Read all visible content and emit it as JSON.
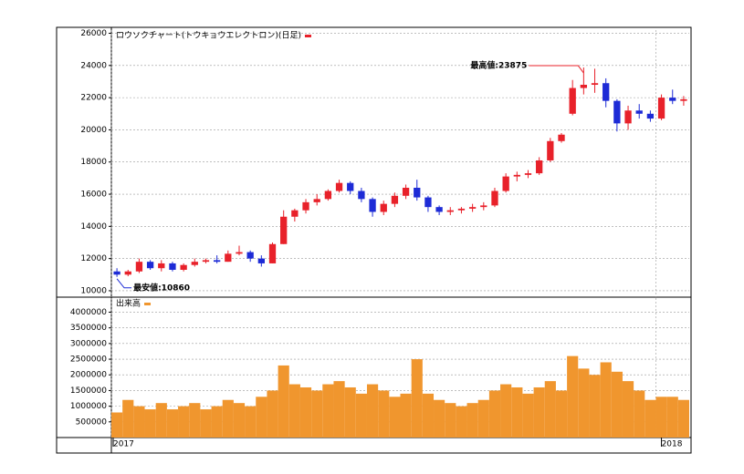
{
  "chart_data": [
    {
      "type": "candlestick",
      "legend_label": "ロウソクチャート(トウキョウエレクトロン)(日足)",
      "legend_color": "#e8212a",
      "categories": [
        "2017",
        null,
        null,
        null,
        null,
        null,
        null,
        null,
        null,
        null,
        null,
        null,
        null,
        null,
        null,
        null,
        null,
        null,
        null,
        null,
        null,
        null,
        null,
        null,
        null,
        null,
        null,
        null,
        null,
        null,
        null,
        null,
        null,
        null,
        null,
        null,
        null,
        null,
        null,
        null,
        null,
        null,
        null,
        null,
        null,
        null,
        null,
        null,
        null,
        "2018",
        null,
        null
      ],
      "open": [
        11200,
        11000,
        11200,
        11800,
        11400,
        11700,
        11300,
        11600,
        11800,
        11900,
        11800,
        12300,
        12400,
        12000,
        11700,
        12900,
        14600,
        15000,
        15500,
        15700,
        16200,
        16700,
        16200,
        15700,
        14900,
        15400,
        15900,
        16400,
        15800,
        15200,
        14900,
        15000,
        15100,
        15200,
        15300,
        16200,
        17100,
        17200,
        17300,
        18100,
        19300,
        21000,
        22600,
        22800,
        22900,
        21800,
        20400,
        21200,
        21000,
        20700,
        22000,
        21800
      ],
      "high": [
        11400,
        11300,
        12000,
        11900,
        11900,
        11800,
        11700,
        12000,
        12000,
        12200,
        12500,
        12800,
        12500,
        12200,
        13000,
        15000,
        15100,
        15700,
        16000,
        16300,
        16900,
        16800,
        16400,
        15800,
        15600,
        16100,
        16600,
        16900,
        15900,
        15300,
        15200,
        15200,
        15400,
        15500,
        16400,
        17300,
        17400,
        17500,
        18300,
        19500,
        19800,
        23100,
        23875,
        23800,
        23200,
        21900,
        21500,
        21600,
        21200,
        22200,
        22500,
        22100
      ],
      "low": [
        10860,
        10900,
        11100,
        11300,
        11200,
        11200,
        11200,
        11500,
        11700,
        11700,
        11800,
        12200,
        11800,
        11500,
        11700,
        12900,
        14300,
        14800,
        15300,
        15600,
        16100,
        16000,
        15500,
        14600,
        14700,
        15200,
        15700,
        15600,
        14900,
        14700,
        14700,
        14800,
        14900,
        15000,
        15200,
        16100,
        16800,
        17000,
        17200,
        18000,
        19200,
        20900,
        22200,
        22300,
        21400,
        19900,
        20000,
        20700,
        20500,
        20600,
        21600,
        21500
      ],
      "close": [
        11000,
        11200,
        11800,
        11400,
        11700,
        11300,
        11600,
        11800,
        11900,
        11800,
        12300,
        12400,
        12000,
        11700,
        12900,
        14600,
        15000,
        15500,
        15700,
        16200,
        16700,
        16200,
        15700,
        14900,
        15400,
        15900,
        16400,
        15800,
        15200,
        14900,
        15000,
        15100,
        15200,
        15300,
        16200,
        17100,
        17200,
        17300,
        18100,
        19300,
        19700,
        22600,
        22800,
        22900,
        21800,
        20400,
        21200,
        21000,
        20700,
        22000,
        21800,
        21900
      ],
      "up_color": "#e8212a",
      "down_color": "#1d2bd6",
      "ylim": [
        9600,
        26200
      ],
      "yticks": [
        10000,
        12000,
        14000,
        16000,
        18000,
        20000,
        22000,
        24000,
        26000
      ],
      "grid": true,
      "annotations": [
        {
          "text": "最高値:23875",
          "color": "#e8212a"
        },
        {
          "text": "最安値:10860",
          "color": "#1d2bd6"
        }
      ]
    },
    {
      "type": "bar",
      "legend_label": "出来高",
      "color": "#f0962e",
      "categories": [
        "2017",
        null,
        null,
        null,
        null,
        null,
        null,
        null,
        null,
        null,
        null,
        null,
        null,
        null,
        null,
        null,
        null,
        null,
        null,
        null,
        null,
        null,
        null,
        null,
        null,
        null,
        null,
        null,
        null,
        null,
        null,
        null,
        null,
        null,
        null,
        null,
        null,
        null,
        null,
        null,
        null,
        null,
        null,
        null,
        null,
        null,
        null,
        null,
        null,
        "2018",
        null,
        null
      ],
      "values": [
        800000,
        1200000,
        1000000,
        900000,
        1100000,
        900000,
        1000000,
        1100000,
        900000,
        1000000,
        1200000,
        1100000,
        1000000,
        1300000,
        1500000,
        2300000,
        1700000,
        1600000,
        1500000,
        1700000,
        1800000,
        1600000,
        1400000,
        1700000,
        1500000,
        1300000,
        1400000,
        2500000,
        1400000,
        1200000,
        1100000,
        1000000,
        1100000,
        1200000,
        1500000,
        1700000,
        1600000,
        1400000,
        1600000,
        1800000,
        1500000,
        2600000,
        2200000,
        2000000,
        2400000,
        2100000,
        1800000,
        1500000,
        1200000,
        1300000,
        1300000,
        1200000
      ],
      "ylim": [
        0,
        4450000
      ],
      "yticks": [
        500000,
        1000000,
        1500000,
        2000000,
        2500000,
        3000000,
        3500000,
        4000000
      ],
      "grid": true
    }
  ]
}
